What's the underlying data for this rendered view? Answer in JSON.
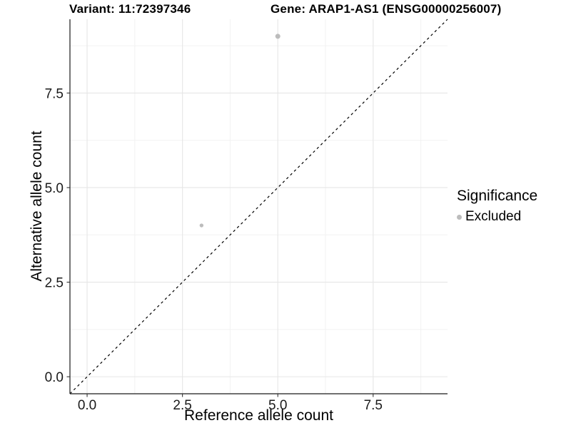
{
  "chart_data": {
    "type": "scatter",
    "title_left": "Variant: 11:72397346",
    "title_right": "Gene: ARAP1-AS1 (ENSG00000256007)",
    "xlabel": "Reference allele count",
    "ylabel": "Alternative allele count",
    "xlim": [
      -0.45,
      9.45
    ],
    "ylim": [
      -0.45,
      9.45
    ],
    "x_ticks": {
      "values": [
        0,
        2.5,
        5,
        7.5
      ],
      "labels": [
        "0.0",
        "2.5",
        "5.0",
        "7.5"
      ]
    },
    "y_ticks": {
      "values": [
        0,
        2.5,
        5,
        7.5
      ],
      "labels": [
        "0.0",
        "2.5",
        "5.0",
        "7.5"
      ]
    },
    "minor_ticks": [
      1.25,
      3.75,
      6.25,
      8.75
    ],
    "grid": {
      "major_color": "#e6e6e6",
      "minor_color": "#f2f2f2",
      "background": "#ffffff"
    },
    "axis_color": "#1a1a1a",
    "tick_color": "#333333",
    "reference_line": {
      "type": "identity",
      "style": "dashed",
      "color": "#000000"
    },
    "series": [
      {
        "name": "Excluded",
        "color": "#bcbcbc",
        "points": [
          {
            "x": 3,
            "y": 4,
            "r": 2.7
          },
          {
            "x": 5,
            "y": 9,
            "r": 3.5
          }
        ]
      }
    ],
    "legend": {
      "title": "Significance",
      "position": "right",
      "items": [
        {
          "label": "Excluded",
          "color": "#bcbcbc",
          "marker": "circle"
        }
      ]
    }
  }
}
